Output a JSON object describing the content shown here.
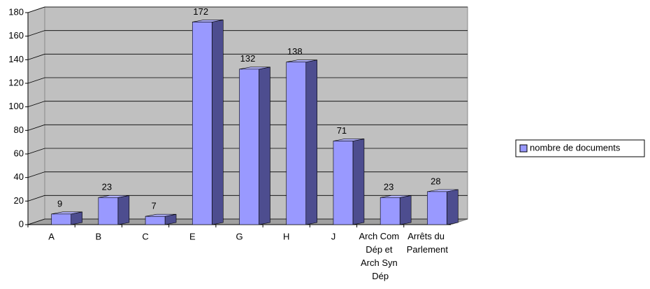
{
  "chart_data": {
    "type": "bar",
    "categories": [
      "A",
      "B",
      "C",
      "E",
      "G",
      "H",
      "J",
      "Arch Com Dép et Arch Syn Dép",
      "Arrêts du Parlement"
    ],
    "series": [
      {
        "name": "nombre de documents",
        "color": "#9999ff",
        "values": [
          9,
          23,
          7,
          172,
          132,
          138,
          71,
          23,
          28
        ]
      }
    ],
    "ylim": [
      0,
      180
    ],
    "yticks": [
      0,
      20,
      40,
      60,
      80,
      100,
      120,
      140,
      160,
      180
    ],
    "grid": true,
    "legend": "right"
  }
}
